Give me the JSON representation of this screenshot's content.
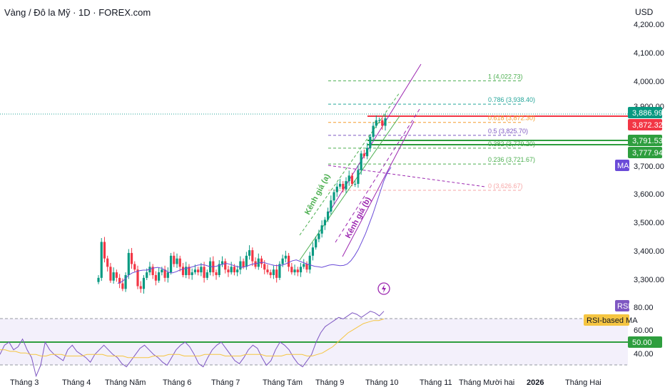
{
  "header": {
    "title": "Vàng / Đô la Mỹ · 1D · FOREX.com",
    "currency": "USD"
  },
  "colors": {
    "up": "#089981",
    "down": "#f23645",
    "ma": "#6a4bd8",
    "rsi": "#7e57c2",
    "rsi_ma": "#f5c542",
    "fib_green": "#4caf50",
    "fib_teal": "#26a69a",
    "fib_orange": "#f59b2b",
    "red_level": "#f23645",
    "green_level": "#2e9e3e",
    "channel": "#9c27b0"
  },
  "price_axis": {
    "labels": [
      "4,200.00",
      "4,100.00",
      "4,000.00",
      "3,900.00",
      "3,700.00",
      "3,600.00",
      "3,500.00",
      "3,400.00",
      "3,300.00"
    ]
  },
  "price_tags": [
    {
      "label": "3,886.99",
      "color": "#089981"
    },
    {
      "label": "3,872.32",
      "color": "#f23645"
    },
    {
      "label": "3,791.53",
      "color": "#2e9e3e"
    },
    {
      "label": "3,777.94",
      "color": "#2e9e3e"
    }
  ],
  "ma_badge": "MA",
  "fib_levels": [
    {
      "label": "1 (4,022.73)",
      "value": 4022.73,
      "color": "#4caf50"
    },
    {
      "label": "0.786 (3,938.40)",
      "value": 3938.4,
      "color": "#26a69a"
    },
    {
      "label": "0.618 (3,872.30)",
      "value": 3872.3,
      "color": "#f59b2b"
    },
    {
      "label": "0.5 (3,825.70)",
      "value": 3825.7,
      "color": "#7e57c2"
    },
    {
      "label": "0.382 (3,779.20)",
      "value": 3779.2,
      "color": "#4caf50"
    },
    {
      "label": "0.236 (3,721.67)",
      "value": 3721.67,
      "color": "#4caf50"
    },
    {
      "label": "0 (3,626.67)",
      "value": 3626.67,
      "color": "#f7a6a6"
    }
  ],
  "channels": [
    {
      "label": "Kênh giá (a)",
      "color": "#4caf50"
    },
    {
      "label": "Kênh giá (b)",
      "color": "#9c27b0"
    }
  ],
  "rsi_panel": {
    "badge": "RSI",
    "ma_badge": "RSI-based MA",
    "axis_labels": [
      "80.00",
      "60.00",
      "40.00"
    ],
    "tag_50": "50.00",
    "levels": [
      70,
      50,
      30
    ]
  },
  "x_axis": {
    "labels": [
      "Tháng 3",
      "Tháng 4",
      "Tháng Năm",
      "Tháng 6",
      "Tháng 7",
      "Tháng Tám",
      "Tháng 9",
      "Tháng 10",
      "Tháng 11",
      "Tháng Mười hai",
      "2026",
      "Tháng Hai"
    ]
  },
  "chart_data": {
    "type": "candlestick",
    "symbol": "Vàng / Đô la Mỹ · 1D · FOREX.com",
    "ylim": [
      3240,
      4230
    ],
    "closes": [
      3310,
      3440,
      3380,
      3350,
      3300,
      3330,
      3310,
      3290,
      3270,
      3320,
      3400,
      3360,
      3340,
      3280,
      3270,
      3310,
      3330,
      3350,
      3320,
      3300,
      3330,
      3340,
      3310,
      3330,
      3390,
      3360,
      3380,
      3350,
      3320,
      3350,
      3320,
      3330,
      3340,
      3330,
      3350,
      3310,
      3330,
      3370,
      3330,
      3320,
      3360,
      3370,
      3340,
      3330,
      3350,
      3330,
      3340,
      3370,
      3350,
      3390,
      3410,
      3370,
      3350,
      3380,
      3360,
      3340,
      3330,
      3320,
      3340,
      3310,
      3360,
      3380,
      3390,
      3350,
      3330,
      3340,
      3330,
      3350,
      3360,
      3340,
      3390,
      3420,
      3450,
      3470,
      3500,
      3520,
      3550,
      3590,
      3620,
      3640,
      3650,
      3630,
      3660,
      3680,
      3650,
      3650,
      3700,
      3760,
      3750,
      3780,
      3820,
      3860,
      3880,
      3880,
      3860,
      3887
    ],
    "ma": [
      3290,
      3295,
      3305,
      3320,
      3328,
      3332,
      3336,
      3338,
      3338,
      3342,
      3346,
      3348,
      3345,
      3338,
      3330,
      3328,
      3332,
      3338,
      3342,
      3345,
      3348,
      3352,
      3356,
      3358,
      3356,
      3352,
      3350,
      3352,
      3356,
      3360,
      3362,
      3358,
      3354,
      3350,
      3348,
      3350,
      3355,
      3360,
      3362,
      3365,
      3366,
      3362,
      3358,
      3355,
      3354,
      3356,
      3360,
      3366,
      3372,
      3375,
      3370,
      3365,
      3360,
      3356,
      3352,
      3350,
      3348,
      3352,
      3356,
      3358,
      3356,
      3354,
      3355,
      3360,
      3372,
      3390,
      3412,
      3440,
      3470,
      3505,
      3540,
      3580,
      3620,
      3660,
      3690,
      3710
    ],
    "rsi": [
      52,
      58,
      60,
      55,
      57,
      62,
      55,
      50,
      38,
      45,
      60,
      55,
      52,
      50,
      48,
      55,
      58,
      54,
      52,
      50,
      47,
      52,
      55,
      58,
      55,
      52,
      50,
      46,
      44,
      48,
      52,
      56,
      58,
      55,
      52,
      50,
      47,
      45,
      50,
      55,
      58,
      60,
      57,
      52,
      46,
      44,
      50,
      55,
      58,
      60,
      56,
      52,
      48,
      46,
      50,
      55,
      58,
      56,
      50,
      45,
      48,
      55,
      60,
      58,
      55,
      50,
      46,
      44,
      48,
      52,
      60,
      66,
      70,
      72,
      74,
      76,
      75,
      77,
      79,
      78,
      76,
      78,
      80,
      79,
      77,
      80
    ],
    "rsi_ma": [
      55,
      55,
      54,
      54,
      53,
      53,
      52,
      52,
      51,
      51,
      52,
      52,
      52,
      51,
      51,
      51,
      51,
      52,
      52,
      52,
      52,
      51,
      51,
      51,
      51,
      50,
      50,
      50,
      50,
      50,
      51,
      51,
      51,
      52,
      52,
      52,
      51,
      51,
      51,
      51,
      52,
      52,
      52,
      52,
      51,
      51,
      51,
      51,
      52,
      52,
      52,
      52,
      51,
      51,
      51,
      51,
      52,
      52,
      52,
      52,
      51,
      51,
      52,
      53,
      55,
      57,
      60,
      63,
      66,
      68,
      70,
      72,
      73,
      74,
      74,
      75
    ],
    "rsi_ylim": [
      30,
      90
    ],
    "grid": false,
    "legend": "none"
  }
}
